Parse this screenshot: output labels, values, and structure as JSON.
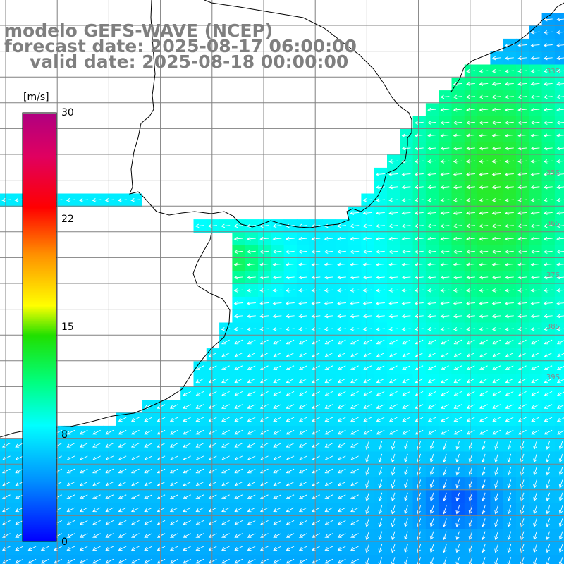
{
  "title": {
    "line1": "modelo GEFS-WAVE (NCEP)",
    "line2": "forecast date: 2025-08-17 06:00:00",
    "line3": "valid date: 2025-08-18 00:00:00"
  },
  "colorbar": {
    "unit": "[m/s]",
    "ticks": [
      {
        "label": "30",
        "value": 30
      },
      {
        "label": "22",
        "value": 22
      },
      {
        "label": "15",
        "value": 15
      },
      {
        "label": "8",
        "value": 8
      },
      {
        "label": "0",
        "value": 0
      }
    ],
    "colors": [
      "#0000ff",
      "#0090ff",
      "#00ffff",
      "#00ff60",
      "#30e000",
      "#ffff00",
      "#ff8000",
      "#ff0000",
      "#e0006a",
      "#b0007a"
    ]
  },
  "lat_labels": [
    "33S",
    "34S",
    "35S",
    "36S",
    "37S",
    "38S",
    "39S"
  ],
  "colors": {
    "title": "#7f7f7f",
    "land": "#ffffff",
    "grid": "#808080",
    "coast": "#000000",
    "arrow": "#ffffff"
  }
}
